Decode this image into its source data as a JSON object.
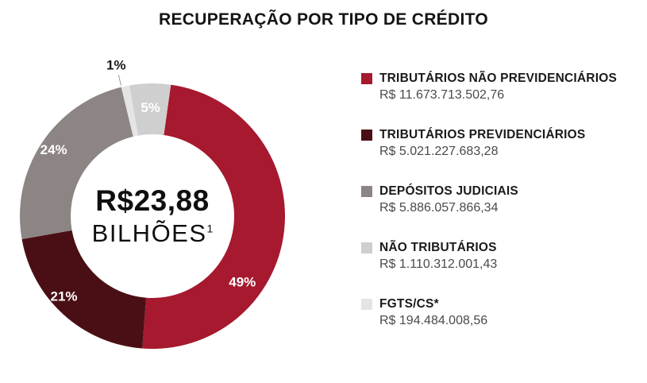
{
  "title": "RECUPERAÇÃO POR TIPO DE CRÉDITO",
  "chart_data": {
    "type": "pie",
    "donut": true,
    "legend_position": "right",
    "start_angle": 8,
    "draw_order": [
      0,
      1,
      2,
      4,
      3
    ],
    "center_label": {
      "value": "R$23,88",
      "unit": "BILHÕES",
      "sup": "1"
    },
    "slices": [
      {
        "label": "TRIBUTÁRIOS NÃO PREVIDENCIÁRIOS",
        "value": "R$ 11.673.713.502,76",
        "pct": 49,
        "pct_label": "49%",
        "color": "#A6192E",
        "label_angle": 126,
        "label_r": 140,
        "label_color": "#FFFFFF",
        "outside": false
      },
      {
        "label": "TRIBUTÁRIOS PREVIDENCIÁRIOS",
        "value": "R$ 5.021.227.683,28",
        "pct": 21,
        "pct_label": "21%",
        "color": "#4A0F14",
        "label_angle": 228,
        "label_r": 150,
        "label_color": "#FFFFFF",
        "outside": false
      },
      {
        "label": "DEPÓSITOS JUDICIAIS",
        "value": "R$ 5.886.057.866,34",
        "pct": 24,
        "pct_label": "24%",
        "color": "#8C8584",
        "label_angle": 304,
        "label_r": 150,
        "label_color": "#FFFFFF",
        "outside": false
      },
      {
        "label": "NÃO TRIBUTÁRIOS",
        "value": "R$ 1.110.312.001,43",
        "pct": 5,
        "pct_label": "5%",
        "color": "#CFCFCF",
        "label_angle": 359,
        "label_r": 137,
        "label_color": "#FFFFFF",
        "outside": false
      },
      {
        "label": "FGTS/CS*",
        "value": "R$ 194.484.008,56",
        "pct": 1,
        "pct_label": "1%",
        "color": "#E4E4E4",
        "label_angle": 346.5,
        "label_r": 196,
        "label_color": "#1A1A1A",
        "outside": true
      }
    ]
  }
}
